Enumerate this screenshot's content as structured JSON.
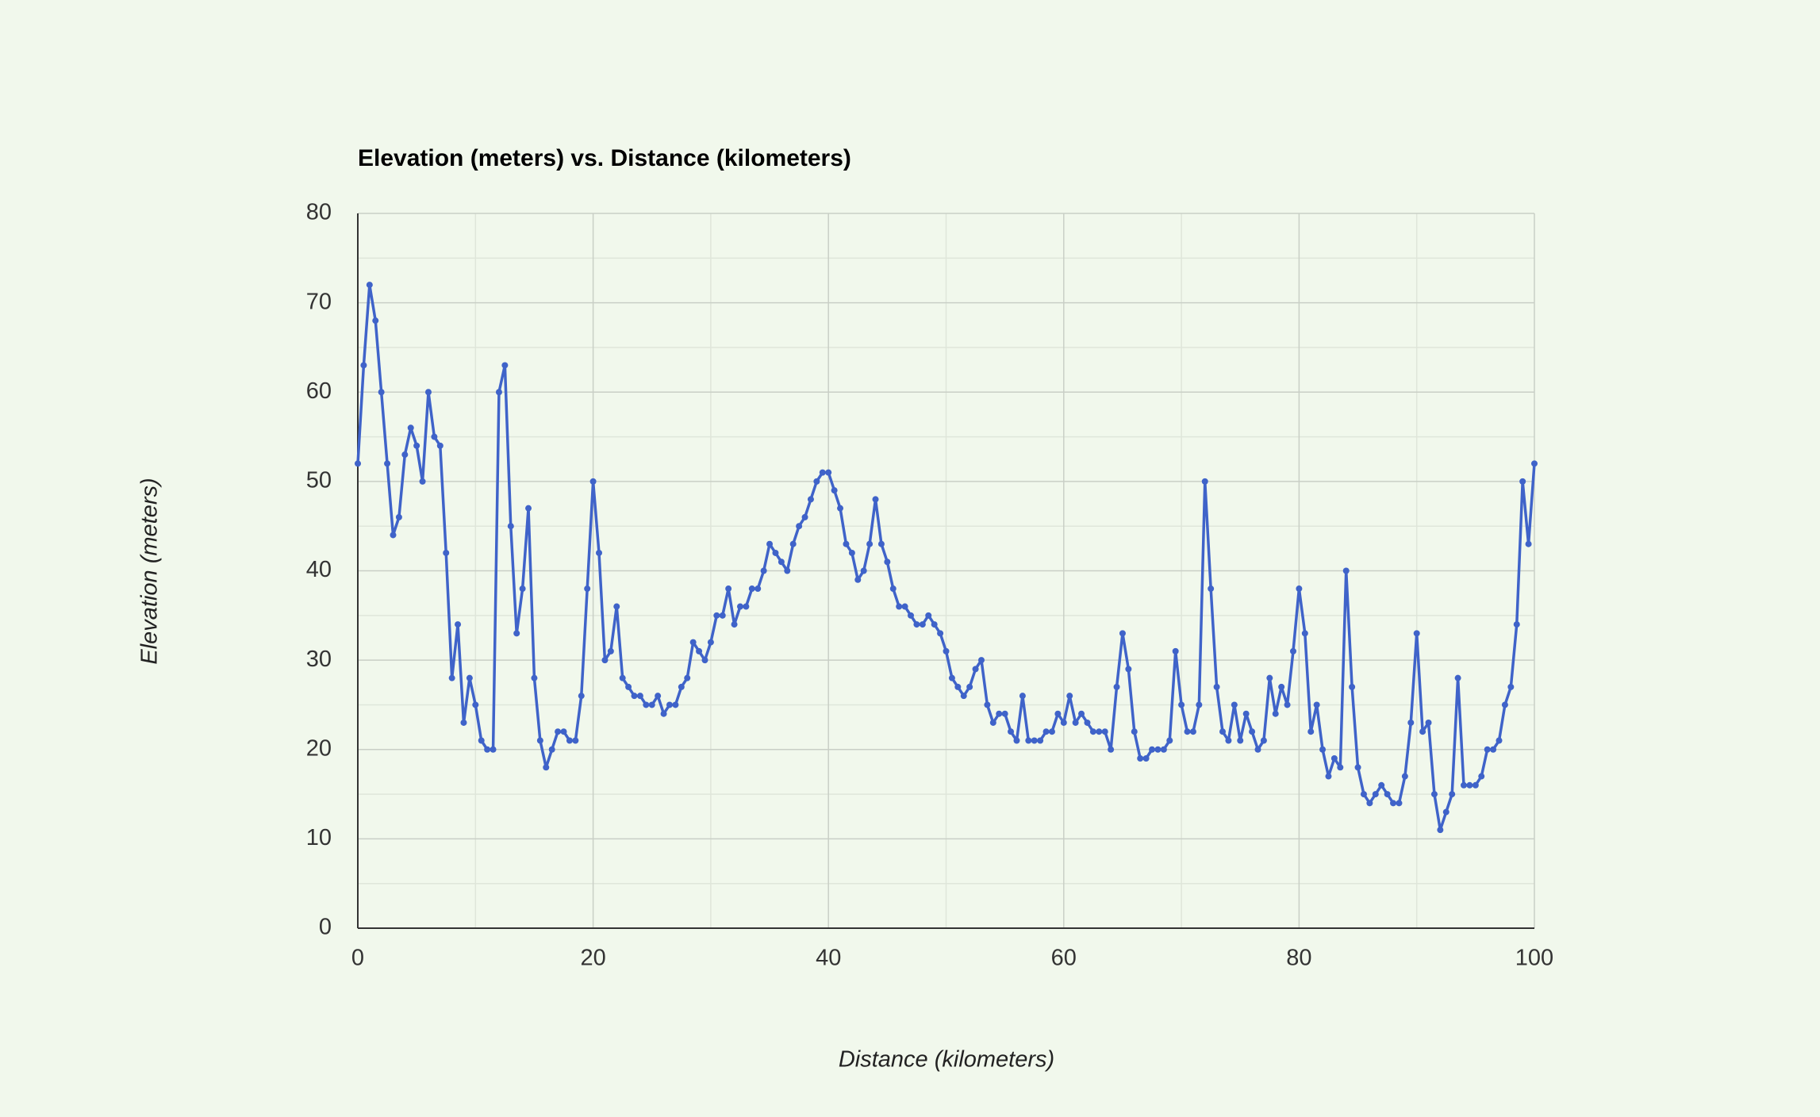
{
  "chart_data": {
    "type": "line",
    "title": "Elevation (meters) vs. Distance (kilometers)",
    "x_label": "Distance (kilometers)",
    "y_label": "Elevation (meters)",
    "xlim": [
      0,
      100
    ],
    "xticks": [
      0,
      20,
      40,
      60,
      80,
      100
    ],
    "ylim": [
      0,
      80
    ],
    "yticks": [
      0,
      10,
      20,
      30,
      40,
      50,
      60,
      70,
      80
    ],
    "grid": true,
    "minor_grid": true,
    "x": [
      0,
      0.5,
      1,
      1.5,
      2,
      2.5,
      3,
      3.5,
      4,
      4.5,
      5,
      5.5,
      6,
      6.5,
      7,
      7.5,
      8,
      8.5,
      9,
      9.5,
      10,
      10.5,
      11,
      11.5,
      12,
      12.5,
      13,
      13.5,
      14,
      14.5,
      15,
      15.5,
      16,
      16.5,
      17,
      17.5,
      18,
      18.5,
      19,
      19.5,
      20,
      20.5,
      21,
      21.5,
      22,
      22.5,
      23,
      23.5,
      24,
      24.5,
      25,
      25.5,
      26,
      26.5,
      27,
      27.5,
      28,
      28.5,
      29,
      29.5,
      30,
      30.5,
      31,
      31.5,
      32,
      32.5,
      33,
      33.5,
      34,
      34.5,
      35,
      35.5,
      36,
      36.5,
      37,
      37.5,
      38,
      38.5,
      39,
      39.5,
      40,
      40.5,
      41,
      41.5,
      42,
      42.5,
      43,
      43.5,
      44,
      44.5,
      45,
      45.5,
      46,
      46.5,
      47,
      47.5,
      48,
      48.5,
      49,
      49.5,
      50,
      50.5,
      51,
      51.5,
      52,
      52.5,
      53,
      53.5,
      54,
      54.5,
      55,
      55.5,
      56,
      56.5,
      57,
      57.5,
      58,
      58.5,
      59,
      59.5,
      60,
      60.5,
      61,
      61.5,
      62,
      62.5,
      63,
      63.5,
      64,
      64.5,
      65,
      65.5,
      66,
      66.5,
      67,
      67.5,
      68,
      68.5,
      69,
      69.5,
      70,
      70.5,
      71,
      71.5,
      72,
      72.5,
      73,
      73.5,
      74,
      74.5,
      75,
      75.5,
      76,
      76.5,
      77,
      77.5,
      78,
      78.5,
      79,
      79.5,
      80,
      80.5,
      81,
      81.5,
      82,
      82.5,
      83,
      83.5,
      84,
      84.5,
      85,
      85.5,
      86,
      86.5,
      87,
      87.5,
      88,
      88.5,
      89,
      89.5,
      90,
      90.5,
      91,
      91.5,
      92,
      92.5,
      93,
      93.5,
      94,
      94.5,
      95,
      95.5,
      96,
      96.5,
      97,
      97.5,
      98,
      98.5,
      99,
      99.5,
      100
    ],
    "series": [
      {
        "name": "Elevation",
        "color": "#3f63c9",
        "values": [
          52,
          63,
          72,
          68,
          60,
          52,
          44,
          46,
          53,
          56,
          54,
          50,
          60,
          55,
          54,
          42,
          28,
          34,
          23,
          28,
          25,
          21,
          20,
          20,
          60,
          63,
          45,
          33,
          38,
          47,
          28,
          21,
          18,
          20,
          22,
          22,
          21,
          21,
          26,
          38,
          50,
          42,
          30,
          31,
          36,
          28,
          27,
          26,
          26,
          25,
          25,
          26,
          24,
          25,
          25,
          27,
          28,
          32,
          31,
          30,
          32,
          35,
          35,
          38,
          34,
          36,
          36,
          38,
          38,
          40,
          43,
          42,
          41,
          40,
          43,
          45,
          46,
          48,
          50,
          51,
          51,
          49,
          47,
          43,
          42,
          39,
          40,
          43,
          48,
          43,
          41,
          38,
          36,
          36,
          35,
          34,
          34,
          35,
          34,
          33,
          31,
          28,
          27,
          26,
          27,
          29,
          30,
          25,
          23,
          24,
          24,
          22,
          21,
          26,
          21,
          21,
          21,
          22,
          22,
          24,
          23,
          26,
          23,
          24,
          23,
          22,
          22,
          22,
          20,
          27,
          33,
          29,
          22,
          19,
          19,
          20,
          20,
          20,
          21,
          31,
          25,
          22,
          22,
          25,
          50,
          38,
          27,
          22,
          21,
          25,
          21,
          24,
          22,
          20,
          21,
          28,
          24,
          27,
          25,
          31,
          38,
          33,
          22,
          25,
          20,
          17,
          19,
          18,
          40,
          27,
          18,
          15,
          14,
          15,
          16,
          15,
          14,
          14,
          17,
          23,
          33,
          22,
          23,
          15,
          11,
          13,
          15,
          28,
          16,
          16,
          16,
          17,
          20,
          20,
          21,
          25,
          27,
          34,
          50,
          43,
          52
        ]
      }
    ]
  }
}
